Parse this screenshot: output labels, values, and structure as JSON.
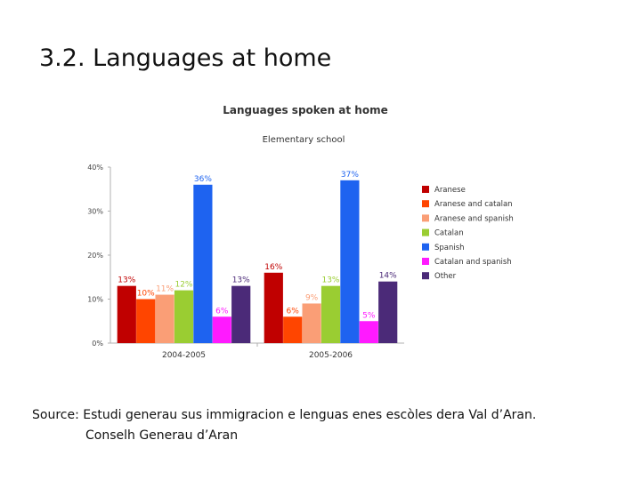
{
  "slide": {
    "title": "3.2. Languages at home",
    "source_line1": "Source: Estudi generau sus immigracion e lenguas enes escòles dera Val d’Aran.",
    "source_line2": "Conselh Generau d’Aran"
  },
  "chart_data": {
    "type": "bar",
    "title": "Languages spoken at home",
    "subtitle": "Elementary school",
    "xlabel": "",
    "ylabel": "",
    "ylim": [
      0,
      40
    ],
    "yticks": [
      "0%",
      "10%",
      "20%",
      "30%",
      "40%"
    ],
    "grid": false,
    "legend_position": "right",
    "categories": [
      "2004-2005",
      "2005-2006"
    ],
    "series": [
      {
        "name": "Aranese",
        "color": "#c00000",
        "values": [
          13,
          16
        ],
        "labels": [
          "13%",
          "16%"
        ]
      },
      {
        "name": "Aranese and catalan",
        "color": "#ff4500",
        "values": [
          10,
          6
        ],
        "labels": [
          "10%",
          "6%"
        ]
      },
      {
        "name": "Aranese and spanish",
        "color": "#fa9e76",
        "values": [
          11,
          9
        ],
        "labels": [
          "11%",
          "9%"
        ]
      },
      {
        "name": "Catalan",
        "color": "#9acd32",
        "values": [
          12,
          13
        ],
        "labels": [
          "12%",
          "13%"
        ]
      },
      {
        "name": "Spanish",
        "color": "#1e63f0",
        "values": [
          36,
          37
        ],
        "labels": [
          "36%",
          "37%"
        ]
      },
      {
        "name": "Catalan and spanish",
        "color": "#ff1aff",
        "values": [
          6,
          5
        ],
        "labels": [
          "6%",
          "5%"
        ]
      },
      {
        "name": "Other",
        "color": "#4b2a78",
        "values": [
          13,
          14
        ],
        "labels": [
          "13%",
          "14%"
        ]
      }
    ]
  }
}
